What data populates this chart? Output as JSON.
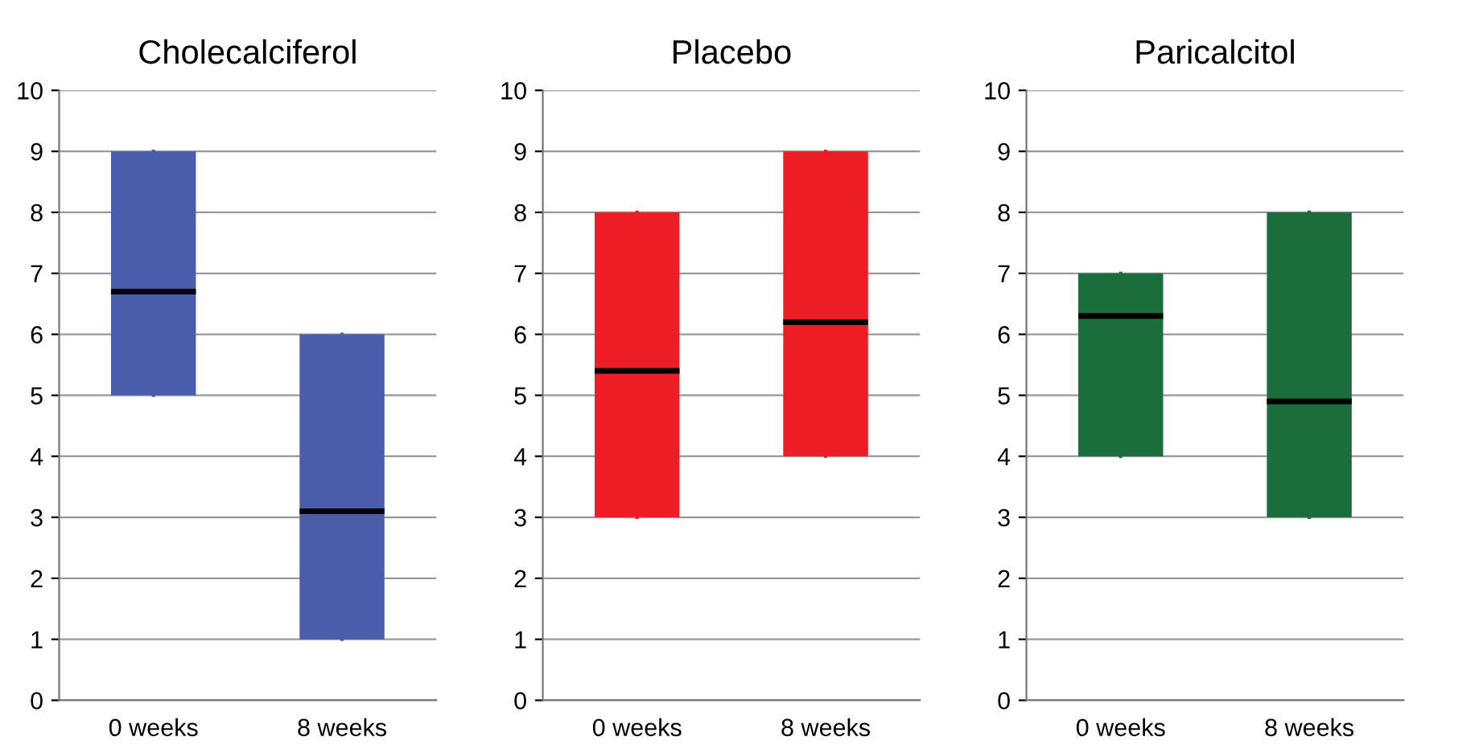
{
  "chart_data": [
    {
      "type": "box",
      "title": "Cholecalciferol",
      "categories": [
        "0 weeks",
        "8 weeks"
      ],
      "color": "#4a5dab",
      "boxes": [
        {
          "low": 5,
          "q1": 5,
          "median": 6.7,
          "q3": 9,
          "high": 9
        },
        {
          "low": 1,
          "q1": 1,
          "median": 3.1,
          "q3": 6,
          "high": 6
        }
      ],
      "ylim": [
        0,
        10
      ],
      "yticks": [
        0,
        1,
        2,
        3,
        4,
        5,
        6,
        7,
        8,
        9,
        10
      ],
      "grid": "y"
    },
    {
      "type": "box",
      "title": "Placebo",
      "categories": [
        "0 weeks",
        "8 weeks"
      ],
      "color": "#ec1d25",
      "boxes": [
        {
          "low": 3,
          "q1": 3,
          "median": 5.4,
          "q3": 8,
          "high": 8
        },
        {
          "low": 4,
          "q1": 4,
          "median": 6.2,
          "q3": 9,
          "high": 9
        }
      ],
      "ylim": [
        0,
        10
      ],
      "yticks": [
        0,
        1,
        2,
        3,
        4,
        5,
        6,
        7,
        8,
        9,
        10
      ],
      "grid": "y"
    },
    {
      "type": "box",
      "title": "Paricalcitol",
      "categories": [
        "0 weeks",
        "8 weeks"
      ],
      "color": "#1b6e3b",
      "boxes": [
        {
          "low": 4,
          "q1": 4,
          "median": 6.3,
          "q3": 7,
          "high": 7
        },
        {
          "low": 3,
          "q1": 3,
          "median": 4.9,
          "q3": 8,
          "high": 8
        }
      ],
      "ylim": [
        0,
        10
      ],
      "yticks": [
        0,
        1,
        2,
        3,
        4,
        5,
        6,
        7,
        8,
        9,
        10
      ],
      "grid": "y"
    }
  ]
}
